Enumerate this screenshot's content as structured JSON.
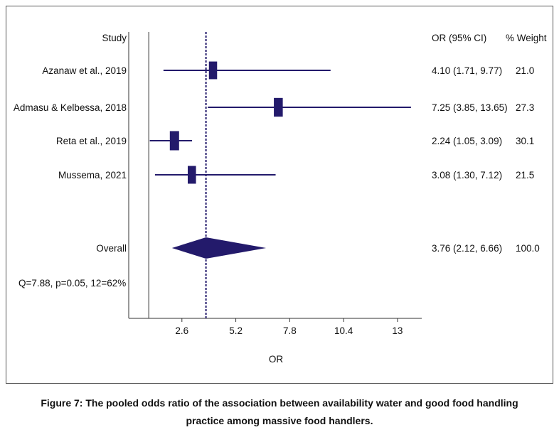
{
  "chart_data": {
    "type": "forest",
    "header": {
      "study": "Study",
      "or_ci": "OR (95% CI)",
      "weight": "% Weight"
    },
    "studies": [
      {
        "label": "Azanaw et al., 2019",
        "or": 4.1,
        "lower": 1.71,
        "upper": 9.77,
        "ci_text": "4.10 (1.71, 9.77)",
        "weight": "21.0"
      },
      {
        "label": "Admasu & Kelbessa, 2018",
        "or": 7.25,
        "lower": 3.85,
        "upper": 13.65,
        "ci_text": "7.25 (3.85, 13.65)",
        "weight": "27.3"
      },
      {
        "label": "Reta et al., 2019",
        "or": 2.24,
        "lower": 1.05,
        "upper": 3.09,
        "ci_text": "2.24 (1.05, 3.09)",
        "weight": "30.1"
      },
      {
        "label": "Mussema, 2021",
        "or": 3.08,
        "lower": 1.3,
        "upper": 7.12,
        "ci_text": "3.08 (1.30, 7.12)",
        "weight": "21.5"
      }
    ],
    "overall": {
      "label": "Overall",
      "or": 3.76,
      "lower": 2.12,
      "upper": 6.66,
      "ci_text": "3.76 (2.12, 6.66)",
      "weight": "100.0"
    },
    "heterogeneity": "Q=7.88, p=0.05, 12=62%",
    "x_ticks": [
      2.6,
      5.2,
      7.8,
      10.4,
      13
    ],
    "x_tick_labels": [
      "2.6",
      "5.2",
      "7.8",
      "10.4",
      "13"
    ],
    "xlabel": "OR",
    "xlim": [
      0,
      14.5
    ],
    "null_line": 1,
    "colors": {
      "marker": "#231a6b",
      "overall_line": "#231a6b",
      "axis": "#333333"
    }
  },
  "caption_lines": [
    "Figure 7: The pooled odds ratio of the association between availability water and good food handling",
    "practice among massive food handlers."
  ]
}
